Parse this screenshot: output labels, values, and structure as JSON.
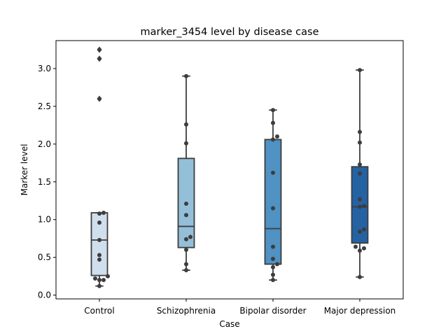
{
  "chart_data": {
    "type": "box",
    "title": "marker_3454 level by disease case",
    "xlabel": "Case",
    "ylabel": "Marker level",
    "ylim": [
      -0.05,
      3.37
    ],
    "yticks": [
      "0.0",
      "0.5",
      "1.0",
      "1.5",
      "2.0",
      "2.5",
      "3.0"
    ],
    "categories": [
      "Control",
      "Schizophrenia",
      "Bipolar disorder",
      "Major depression"
    ],
    "colors": [
      "#d0dfee",
      "#93bfd9",
      "#4f92c3",
      "#2462a4"
    ],
    "outline_color": "#3d3d3d",
    "grid": false,
    "boxes": [
      {
        "q1": 0.26,
        "median": 0.73,
        "q3": 1.09,
        "whisker_low": 0.12,
        "whisker_high": 1.09,
        "outliers": [
          2.6,
          3.13,
          3.25
        ]
      },
      {
        "q1": 0.63,
        "median": 0.91,
        "q3": 1.81,
        "whisker_low": 0.33,
        "whisker_high": 2.9,
        "outliers": []
      },
      {
        "q1": 0.41,
        "median": 0.88,
        "q3": 2.06,
        "whisker_low": 0.2,
        "whisker_high": 2.45,
        "outliers": []
      },
      {
        "q1": 0.69,
        "median": 1.17,
        "q3": 1.7,
        "whisker_low": 0.24,
        "whisker_high": 2.98,
        "outliers": []
      }
    ],
    "points": [
      [
        1.09,
        1.08,
        0.96,
        0.73,
        0.53,
        0.47,
        0.25,
        0.22,
        0.2,
        0.2,
        0.12,
        2.6,
        3.13,
        3.25
      ],
      [
        2.9,
        2.26,
        2.01,
        1.21,
        1.06,
        0.77,
        0.74,
        0.6,
        0.41,
        0.33
      ],
      [
        2.45,
        2.28,
        2.1,
        2.06,
        1.62,
        1.15,
        0.64,
        0.48,
        0.41,
        0.37,
        0.27,
        0.2
      ],
      [
        2.98,
        2.16,
        2.02,
        1.73,
        1.61,
        1.27,
        1.18,
        1.17,
        0.87,
        0.84,
        0.64,
        0.62,
        0.59,
        0.24
      ]
    ]
  }
}
